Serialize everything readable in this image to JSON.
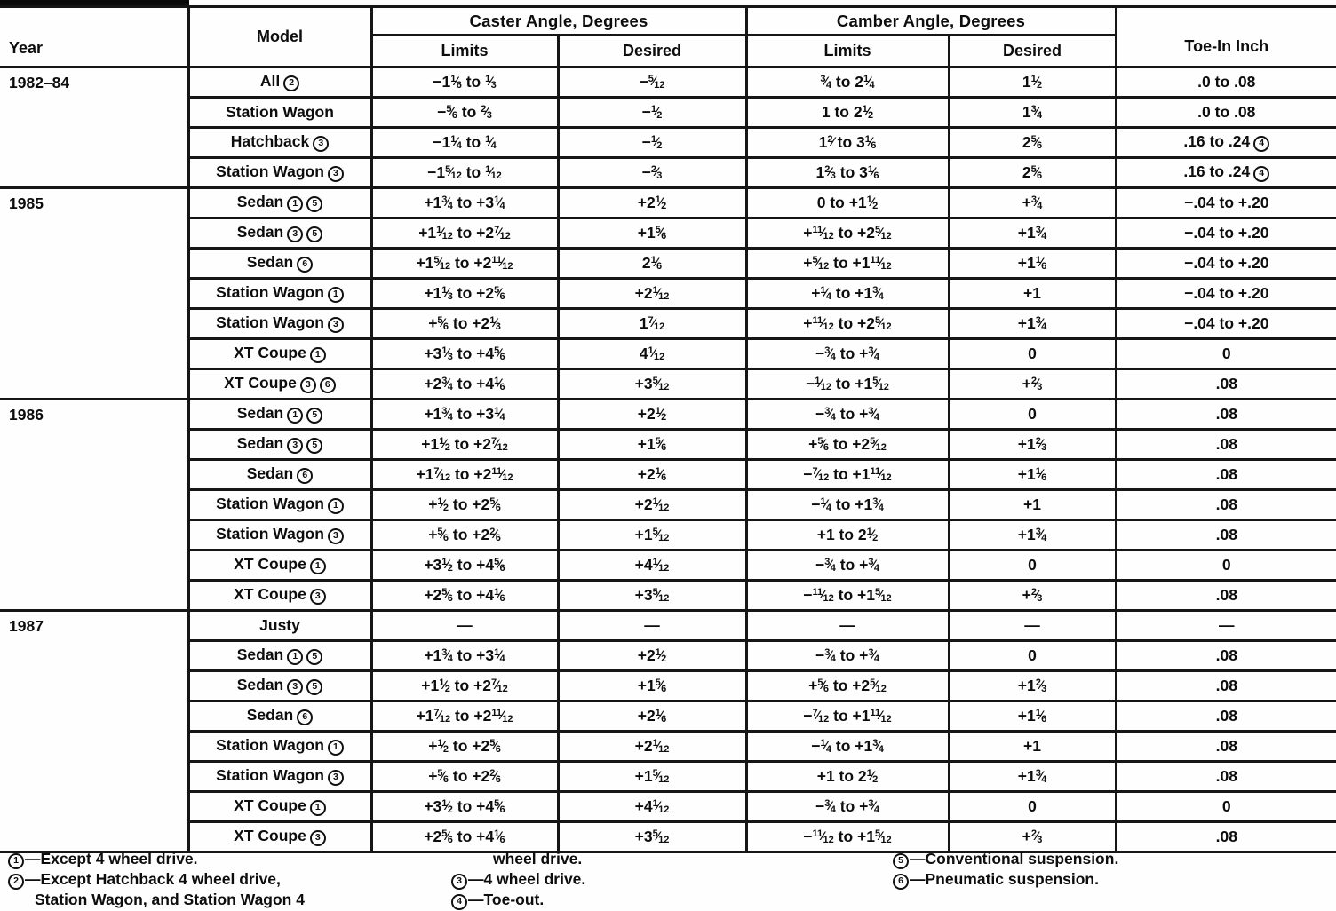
{
  "table": {
    "headers": {
      "year": "Year",
      "model": "Model",
      "caster_group": "Caster Angle, Degrees",
      "camber_group": "Camber Angle, Degrees",
      "caster_limits": "Limits",
      "caster_desired": "Desired",
      "camber_limits": "Limits",
      "camber_desired": "Desired",
      "toe_in": "Toe-In Inch"
    },
    "sections": [
      {
        "year": "1982–84",
        "rows": [
          {
            "model": "All{c2}",
            "caster_limits": "−1{1/6} to {1/3}",
            "caster_desired": "−{5/12}",
            "camber_limits": "{3/4} to 2{1/4}",
            "camber_desired": "1{1/2}",
            "toe_in": ".0 to .08"
          },
          {
            "model": "Station Wagon",
            "caster_limits": "−{5/6} to {2/3}",
            "caster_desired": "−{1/2}",
            "camber_limits": "1 to 2{1/2}",
            "camber_desired": "1{3/4}",
            "toe_in": ".0 to .08"
          },
          {
            "model": "Hatchback{c3}",
            "caster_limits": "−1{1/4} to {1/4}",
            "caster_desired": "−{1/2}",
            "camber_limits": "1{2/} to 3{1/6}",
            "camber_desired": "2{5/6}",
            "toe_in": ".16 to .24{c4}"
          },
          {
            "model": "Station Wagon{c3}",
            "caster_limits": "−1{5/12} to {1/12}",
            "caster_desired": "−{2/3}",
            "camber_limits": "1{2/3} to 3{1/6}",
            "camber_desired": "2{5/6}",
            "toe_in": ".16 to .24{c4}"
          }
        ]
      },
      {
        "year": "1985",
        "rows": [
          {
            "model": "Sedan{c1}{c5}",
            "caster_limits": "+1{3/4} to +3{1/4}",
            "caster_desired": "+2{1/2}",
            "camber_limits": "0 to +1{1/2}",
            "camber_desired": "+{3/4}",
            "toe_in": "−.04 to +.20"
          },
          {
            "model": "Sedan{c3}{c5}",
            "caster_limits": "+1{1/12} to +2{7/12}",
            "caster_desired": "+1{5/6}",
            "camber_limits": "+{11/12} to +2{5/12}",
            "camber_desired": "+1{3/4}",
            "toe_in": "−.04 to +.20"
          },
          {
            "model": "Sedan{c6}",
            "caster_limits": "+1{5/12} to +2{11/12}",
            "caster_desired": "2{1/6}",
            "camber_limits": "+{5/12} to +1{11/12}",
            "camber_desired": "+1{1/6}",
            "toe_in": "−.04 to +.20"
          },
          {
            "model": "Station Wagon{c1}",
            "caster_limits": "+1{1/3} to +2{5/6}",
            "caster_desired": "+2{1/12}",
            "camber_limits": "+{1/4} to +1{3/4}",
            "camber_desired": "+1",
            "toe_in": "−.04 to +.20"
          },
          {
            "model": "Station Wagon{c3}",
            "caster_limits": "+{5/6} to +2{1/3}",
            "caster_desired": "1{7/12}",
            "camber_limits": "+{11/12} to +2{5/12}",
            "camber_desired": "+1{3/4}",
            "toe_in": "−.04 to +.20"
          },
          {
            "model": "XT Coupe{c1}",
            "caster_limits": "+3{1/3} to +4{5/6}",
            "caster_desired": "4{1/12}",
            "camber_limits": "−{3/4} to +{3/4}",
            "camber_desired": "0",
            "toe_in": "0"
          },
          {
            "model": "XT Coupe{c3}{c6}",
            "caster_limits": "+2{3/4} to +4{1/6}",
            "caster_desired": "+3{5/12}",
            "camber_limits": "−{1/12} to +1{5/12}",
            "camber_desired": "+{2/3}",
            "toe_in": ".08"
          }
        ]
      },
      {
        "year": "1986",
        "rows": [
          {
            "model": "Sedan{c1}{c5}",
            "caster_limits": "+1{3/4} to +3{1/4}",
            "caster_desired": "+2{1/2}",
            "camber_limits": "−{3/4} to +{3/4}",
            "camber_desired": "0",
            "toe_in": ".08"
          },
          {
            "model": "Sedan{c3}{c5}",
            "caster_limits": "+1{1/2} to +2{7/12}",
            "caster_desired": "+1{5/6}",
            "camber_limits": "+{5/6} to +2{5/12}",
            "camber_desired": "+1{2/3}",
            "toe_in": ".08"
          },
          {
            "model": "Sedan{c6}",
            "caster_limits": "+1{7/12} to +2{11/12}",
            "caster_desired": "+2{1/6}",
            "camber_limits": "−{7/12} to +1{11/12}",
            "camber_desired": "+1{1/6}",
            "toe_in": ".08"
          },
          {
            "model": "Station Wagon{c1}",
            "caster_limits": "+{1/2} to +2{5/6}",
            "caster_desired": "+2{1/12}",
            "camber_limits": "−{1/4} to +1{3/4}",
            "camber_desired": "+1",
            "toe_in": ".08"
          },
          {
            "model": "Station Wagon{c3}",
            "caster_limits": "+{5/6} to +2{2/6}",
            "caster_desired": "+1{5/12}",
            "camber_limits": "+1 to 2{1/2}",
            "camber_desired": "+1{3/4}",
            "toe_in": ".08"
          },
          {
            "model": "XT Coupe{c1}",
            "caster_limits": "+3{1/2} to +4{5/6}",
            "caster_desired": "+4{1/12}",
            "camber_limits": "−{3/4} to +{3/4}",
            "camber_desired": "0",
            "toe_in": "0"
          },
          {
            "model": "XT Coupe{c3}",
            "caster_limits": "+2{5/6} to +4{1/6}",
            "caster_desired": "+3{5/12}",
            "camber_limits": "−{11/12} to +1{5/12}",
            "camber_desired": "+{2/3}",
            "toe_in": ".08"
          }
        ]
      },
      {
        "year": "1987",
        "rows": [
          {
            "model": "Justy",
            "caster_limits": "—",
            "caster_desired": "—",
            "camber_limits": "—",
            "camber_desired": "—",
            "toe_in": "—"
          },
          {
            "model": "Sedan{c1}{c5}",
            "caster_limits": "+1{3/4} to +3{1/4}",
            "caster_desired": "+2{1/2}",
            "camber_limits": "−{3/4} to +{3/4}",
            "camber_desired": "0",
            "toe_in": ".08"
          },
          {
            "model": "Sedan{c3}{c5}",
            "caster_limits": "+1{1/2} to +2{7/12}",
            "caster_desired": "+1{5/6}",
            "camber_limits": "+{5/6} to +2{5/12}",
            "camber_desired": "+1{2/3}",
            "toe_in": ".08"
          },
          {
            "model": "Sedan{c6}",
            "caster_limits": "+1{7/12} to +2{11/12}",
            "caster_desired": "+2{1/6}",
            "camber_limits": "−{7/12} to +1{11/12}",
            "camber_desired": "+1{1/6}",
            "toe_in": ".08"
          },
          {
            "model": "Station Wagon{c1}",
            "caster_limits": "+{1/2} to +2{5/6}",
            "caster_desired": "+2{1/12}",
            "camber_limits": "−{1/4} to +1{3/4}",
            "camber_desired": "+1",
            "toe_in": ".08"
          },
          {
            "model": "Station Wagon{c3}",
            "caster_limits": "+{5/6} to +2{2/6}",
            "caster_desired": "+1{5/12}",
            "camber_limits": "+1 to 2{1/2}",
            "camber_desired": "+1{3/4}",
            "toe_in": ".08"
          },
          {
            "model": "XT Coupe{c1}",
            "caster_limits": "+3{1/2} to +4{5/6}",
            "caster_desired": "+4{1/12}",
            "camber_limits": "−{3/4} to +{3/4}",
            "camber_desired": "0",
            "toe_in": "0"
          },
          {
            "model": "XT Coupe{c3}",
            "caster_limits": "+2{5/6} to +4{1/6}",
            "caster_desired": "+3{5/12}",
            "camber_limits": "−{11/12} to +1{5/12}",
            "camber_desired": "+{2/3}",
            "toe_in": ".08"
          }
        ]
      }
    ]
  },
  "footnotes": {
    "col1": [
      "{c1}—Except 4 wheel drive.",
      "{c2}—Except Hatchback 4 wheel drive,",
      "Station Wagon, and Station Wagon 4"
    ],
    "col2": [
      "wheel drive.",
      "{c3}—4 wheel drive.",
      "{c4}—Toe-out."
    ],
    "col3": [
      "{c5}—Conventional suspension.",
      "{c6}—Pneumatic suspension."
    ]
  }
}
